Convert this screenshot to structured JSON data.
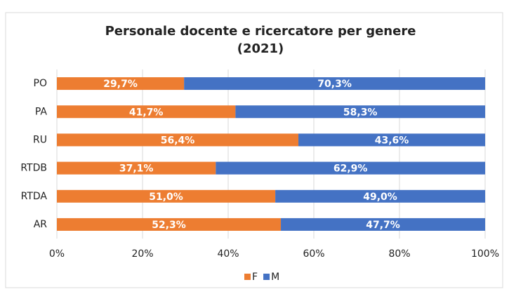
{
  "chart_data": {
    "type": "bar",
    "orientation": "horizontal",
    "stacked": true,
    "title": "Personale docente e ricercatore per genere",
    "subtitle": "(2021)",
    "categories": [
      "PO",
      "PA",
      "RU",
      "RTDB",
      "RTDA",
      "AR"
    ],
    "series": [
      {
        "name": "F",
        "color": "#ed7d31",
        "values": [
          29.7,
          41.7,
          56.4,
          37.1,
          51.0,
          52.3
        ],
        "value_labels": [
          "29,7%",
          "41,7%",
          "56,4%",
          "37,1%",
          "51,0%",
          "52,3%"
        ]
      },
      {
        "name": "M",
        "color": "#4472c4",
        "values": [
          70.3,
          58.3,
          43.6,
          62.9,
          49.0,
          47.7
        ],
        "value_labels": [
          "70,3%",
          "58,3%",
          "43,6%",
          "62,9%",
          "49,0%",
          "47,7%"
        ]
      }
    ],
    "xlim": [
      0,
      100
    ],
    "xticks": [
      {
        "value": 0,
        "label": "0%"
      },
      {
        "value": 20,
        "label": "20%"
      },
      {
        "value": 40,
        "label": "40%"
      },
      {
        "value": 60,
        "label": "60%"
      },
      {
        "value": 80,
        "label": "80%"
      },
      {
        "value": 100,
        "label": "100%"
      }
    ],
    "grid": true,
    "legend": "bottom"
  }
}
